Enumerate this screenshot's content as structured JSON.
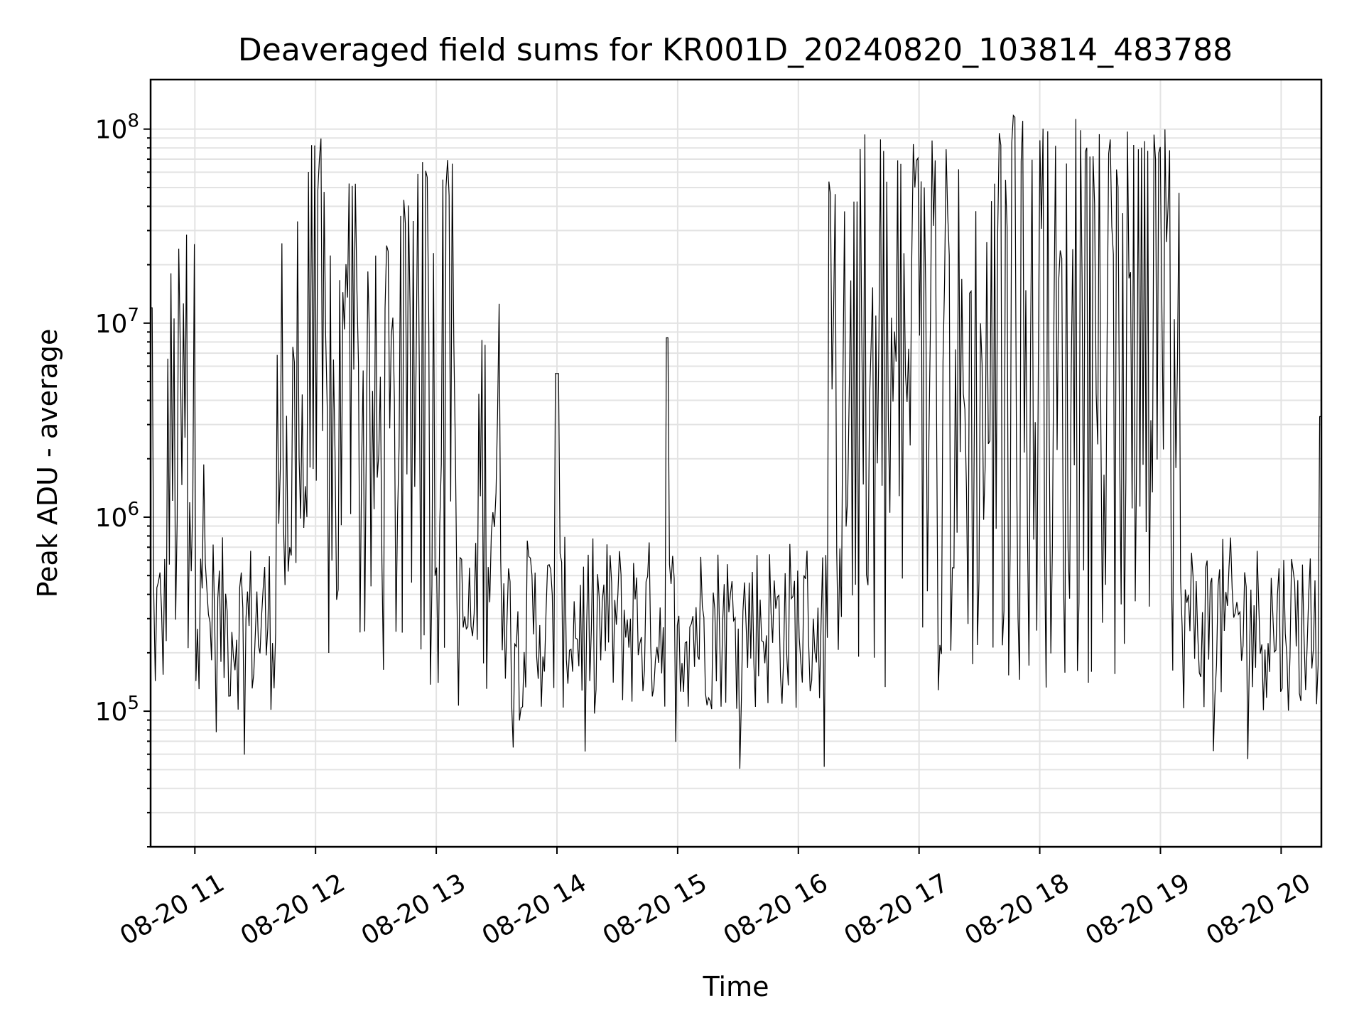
{
  "chart_data": {
    "type": "line",
    "title": "Deaveraged field sums for KR001D_20240820_103814_483788",
    "xlabel": "Time",
    "ylabel": "Peak ADU - average",
    "yscale": "log",
    "ylim": [
      20000,
      180000000
    ],
    "xlim": [
      "2024-08-20 10:38",
      "2024-08-20 20:20"
    ],
    "grid": true,
    "line_color": "#000000",
    "x_tick_labels": [
      "08-20 11",
      "08-20 12",
      "08-20 13",
      "08-20 14",
      "08-20 15",
      "08-20 16",
      "08-20 17",
      "08-20 18",
      "08-20 19",
      "08-20 20"
    ],
    "y_tick_labels": [
      {
        "base": "10",
        "exp": "5",
        "value": 100000
      },
      {
        "base": "10",
        "exp": "6",
        "value": 1000000
      },
      {
        "base": "10",
        "exp": "7",
        "value": 10000000
      },
      {
        "base": "10",
        "exp": "8",
        "value": 100000000
      }
    ],
    "series": [
      {
        "description_points": "approximate envelope of the trace (time, Peak ADU - average)",
        "x": [
          "2024-08-20 10:38",
          "2024-08-20 10:40",
          "2024-08-20 10:45",
          "2024-08-20 10:50",
          "2024-08-20 10:53",
          "2024-08-20 11:00",
          "2024-08-20 11:05",
          "2024-08-20 11:10",
          "2024-08-20 11:15",
          "2024-08-20 11:20",
          "2024-08-20 11:27",
          "2024-08-20 11:30",
          "2024-08-20 11:35",
          "2024-08-20 11:40",
          "2024-08-20 11:48",
          "2024-08-20 11:55",
          "2024-08-20 12:00",
          "2024-08-20 12:05",
          "2024-08-20 12:10",
          "2024-08-20 12:12",
          "2024-08-20 12:20",
          "2024-08-20 12:25",
          "2024-08-20 12:30",
          "2024-08-20 12:40",
          "2024-08-20 12:45",
          "2024-08-20 12:50",
          "2024-08-20 12:55",
          "2024-08-20 13:00",
          "2024-08-20 13:05",
          "2024-08-20 13:10",
          "2024-08-20 13:20",
          "2024-08-20 13:28",
          "2024-08-20 13:35",
          "2024-08-20 13:45",
          "2024-08-20 14:00",
          "2024-08-20 14:15",
          "2024-08-20 14:30",
          "2024-08-20 14:55",
          "2024-08-20 15:00",
          "2024-08-20 15:15",
          "2024-08-20 15:30",
          "2024-08-20 15:45",
          "2024-08-20 16:00",
          "2024-08-20 16:15",
          "2024-08-20 16:30",
          "2024-08-20 16:40",
          "2024-08-20 16:50",
          "2024-08-20 17:00",
          "2024-08-20 17:15",
          "2024-08-20 17:30",
          "2024-08-20 17:45",
          "2024-08-20 18:00",
          "2024-08-20 18:10",
          "2024-08-20 18:20",
          "2024-08-20 18:30",
          "2024-08-20 18:45",
          "2024-08-20 19:00",
          "2024-08-20 19:10",
          "2024-08-20 19:20",
          "2024-08-20 19:30",
          "2024-08-20 19:45",
          "2024-08-20 20:00",
          "2024-08-20 20:10",
          "2024-08-20 20:20"
        ],
        "y": [
          12000000,
          250000,
          200000,
          28000000,
          220000,
          35000000,
          250000,
          900000,
          150000,
          200000,
          1200000,
          260000,
          220000,
          250000,
          35000000,
          230000,
          95000000,
          250000,
          28000000,
          450000,
          57000000,
          320000,
          26000000,
          280000,
          45000000,
          400000,
          72000000,
          450000,
          75000000,
          500000,
          380000,
          18000000,
          420000,
          380000,
          5500000,
          400000,
          450000,
          8400000,
          420000,
          380000,
          350000,
          420000,
          600000,
          500000,
          55000000,
          95000000,
          90000000,
          95000000,
          90000000,
          80000000,
          105000000,
          120000000,
          115000000,
          100000000,
          60000000,
          100000000,
          100000000,
          400000,
          300000,
          250000,
          220000,
          450000,
          600000,
          3300000
        ]
      }
    ]
  }
}
